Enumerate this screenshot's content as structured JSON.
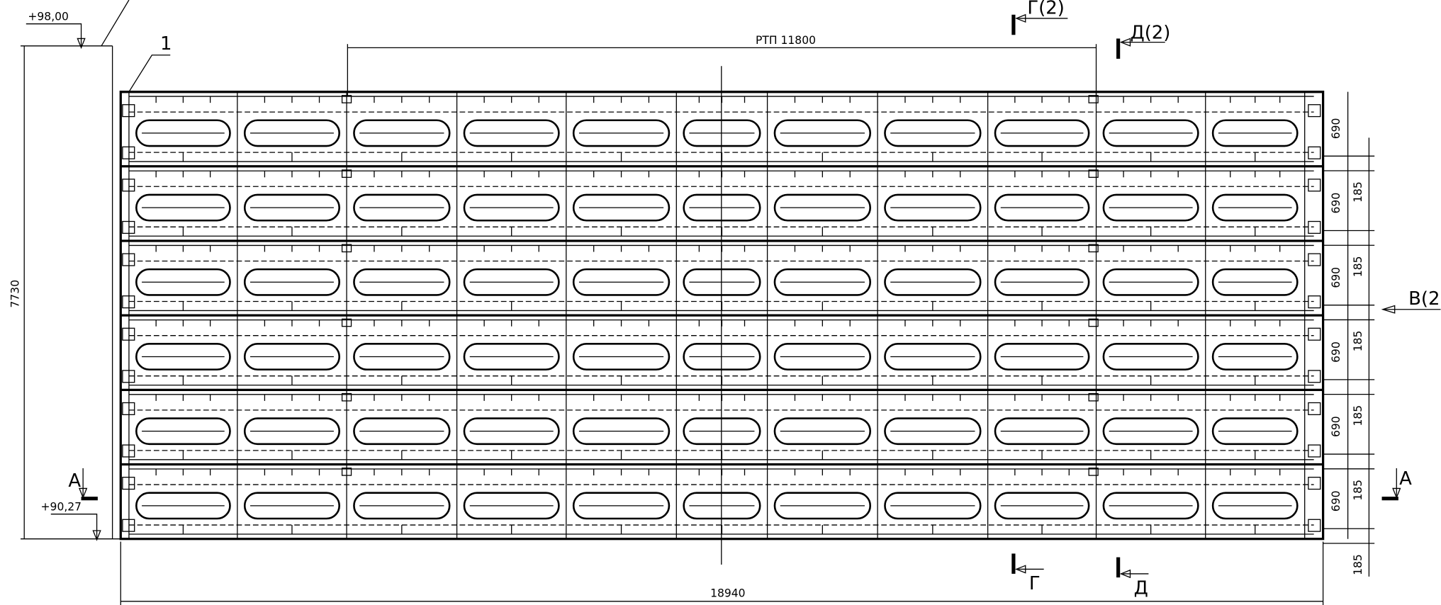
{
  "labels": {
    "level_top": "+98,00",
    "level_bottom": "+90,27",
    "callout": "1",
    "section_g_top": "Г(2)",
    "section_d_top": "Д(2)",
    "section_g_bottom": "Г",
    "section_d_bottom": "Д",
    "section_v": "В(2",
    "section_a_left": "А",
    "section_a_right": "А"
  },
  "dimensions": {
    "rtp": "РТП 11800",
    "overall_height": "7730",
    "overall_length": "18940",
    "row_height": [
      "690",
      "690",
      "690",
      "690",
      "690",
      "690"
    ],
    "gap": [
      "185",
      "185",
      "185",
      "185",
      "185",
      "185"
    ]
  }
}
